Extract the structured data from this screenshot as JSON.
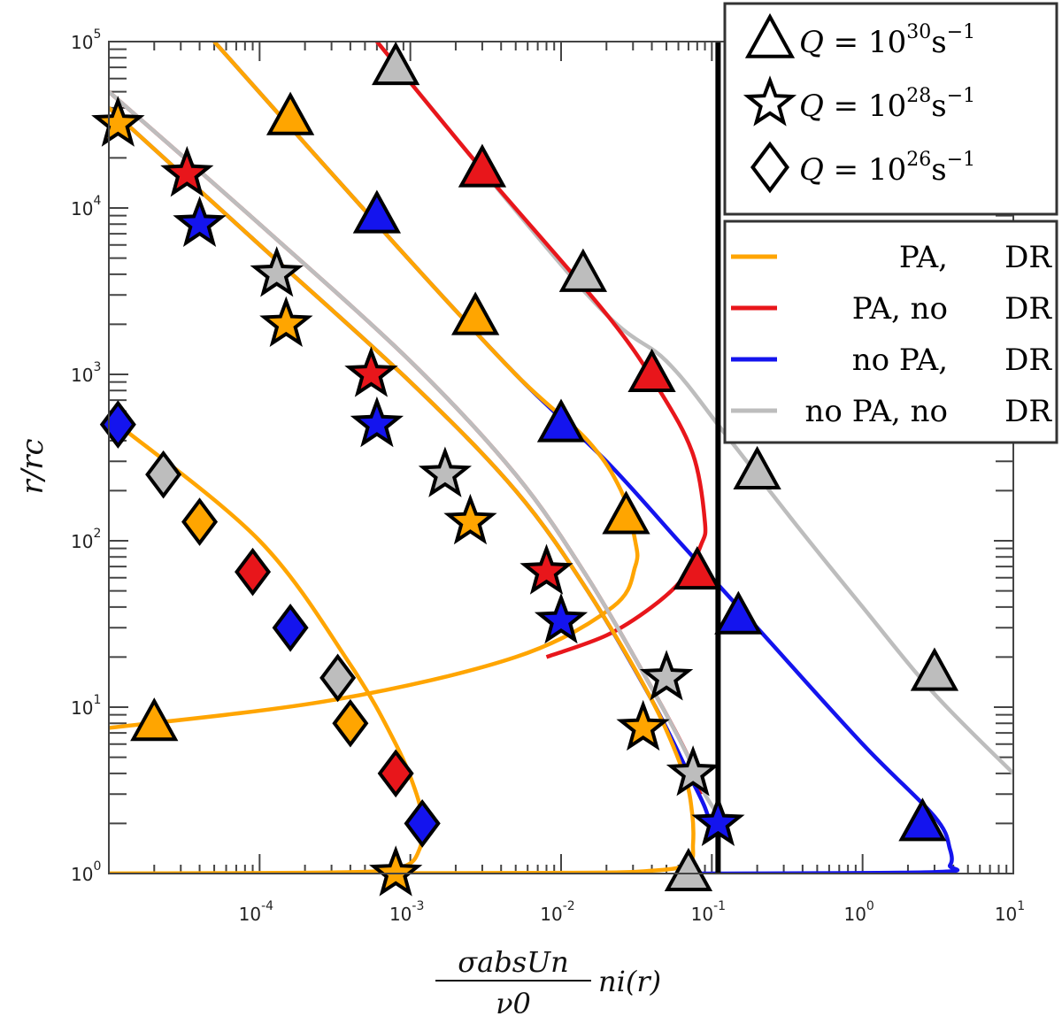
{
  "chart_data": {
    "type": "line",
    "xscale": "log",
    "yscale": "log",
    "xlim": [
      1e-05,
      10
    ],
    "ylim": [
      1,
      100000
    ],
    "xlabel": {
      "top": "σabsUn",
      "bottom": "ν0",
      "tail": "ni(r)"
    },
    "ylabel": "r/rc",
    "x_ticks": [
      {
        "mantissa": "10",
        "exp": "-4",
        "value": 0.0001
      },
      {
        "mantissa": "10",
        "exp": "-3",
        "value": 0.001
      },
      {
        "mantissa": "10",
        "exp": "-2",
        "value": 0.01
      },
      {
        "mantissa": "10",
        "exp": "-1",
        "value": 0.1
      },
      {
        "mantissa": "10",
        "exp": "0",
        "value": 1
      },
      {
        "mantissa": "10",
        "exp": "1",
        "value": 10
      }
    ],
    "y_ticks": [
      {
        "mantissa": "10",
        "exp": "0",
        "value": 1
      },
      {
        "mantissa": "10",
        "exp": "1",
        "value": 10
      },
      {
        "mantissa": "10",
        "exp": "2",
        "value": 100
      },
      {
        "mantissa": "10",
        "exp": "3",
        "value": 1000
      },
      {
        "mantissa": "10",
        "exp": "4",
        "value": 10000
      },
      {
        "mantissa": "10",
        "exp": "5",
        "value": 100000
      }
    ],
    "vline_x": 0.11,
    "colors": {
      "PA_DR": "#ffa500",
      "PA_noDR": "#e8161b",
      "noPA_DR": "#1414ee",
      "noPA_noDR": "#bdbdbd"
    },
    "marker_legend": [
      {
        "shape": "triangle",
        "prefix": "Q = 10",
        "exp": "30",
        "unit": "s",
        "unit_exp": "−1"
      },
      {
        "shape": "star",
        "prefix": "Q = 10",
        "exp": "28",
        "unit": "s",
        "unit_exp": "−1"
      },
      {
        "shape": "diamond",
        "prefix": "Q = 10",
        "exp": "26",
        "unit": "s",
        "unit_exp": "−1"
      }
    ],
    "line_legend": [
      {
        "key": "PA_DR",
        "left": "PA,",
        "right": "DR"
      },
      {
        "key": "PA_noDR",
        "left": "PA, no",
        "right": "DR"
      },
      {
        "key": "noPA_DR",
        "left": "no PA,",
        "right": "DR"
      },
      {
        "key": "noPA_noDR",
        "left": "no PA, no",
        "right": "DR"
      }
    ],
    "series": [
      {
        "name": "Q30 no PA, no DR",
        "color": "noPA_noDR",
        "marker": "triangle",
        "line": [
          [
            0.0006,
            100000
          ],
          [
            0.015,
            3000
          ],
          [
            0.05,
            1200
          ],
          [
            0.12,
            450
          ],
          [
            0.35,
            130
          ],
          [
            1.0,
            40
          ],
          [
            3,
            12
          ],
          [
            10,
            4
          ]
        ],
        "points": [
          [
            0.0008,
            70000
          ],
          [
            0.014,
            4000
          ],
          [
            0.2,
            260
          ],
          [
            3.0,
            16
          ],
          [
            0.07,
            1.0
          ]
        ]
      },
      {
        "name": "Q30 PA, no DR",
        "color": "PA_noDR",
        "marker": "triangle",
        "line": [
          [
            0.0006,
            100000
          ],
          [
            0.003,
            17000
          ],
          [
            0.02,
            2300
          ],
          [
            0.045,
            800
          ],
          [
            0.075,
            330
          ],
          [
            0.09,
            130
          ],
          [
            0.085,
            95
          ],
          [
            0.065,
            60
          ],
          [
            0.04,
            40
          ],
          [
            0.02,
            27
          ],
          [
            0.008,
            20
          ]
        ],
        "points": [
          [
            0.003,
            17000
          ],
          [
            0.04,
            1000
          ],
          [
            0.08,
            65
          ]
        ]
      },
      {
        "name": "Q30 no PA, DR",
        "color": "noPA_DR",
        "marker": "triangle",
        "line": [
          [
            5e-05,
            100000
          ],
          [
            0.0008,
            6000
          ],
          [
            0.005,
            1000
          ],
          [
            0.02,
            300
          ],
          [
            0.06,
            100
          ],
          [
            0.2,
            30
          ],
          [
            1.0,
            6
          ],
          [
            3.0,
            2.2
          ],
          [
            3.8,
            1.4
          ],
          [
            3.8,
            1.12
          ],
          [
            3,
            1.02
          ],
          [
            0.08,
            1.0
          ]
        ],
        "points": [
          [
            0.0006,
            9000
          ],
          [
            0.01,
            500
          ],
          [
            0.15,
            35
          ],
          [
            2.5,
            2
          ]
        ]
      },
      {
        "name": "Q30 PA, DR",
        "color": "PA_DR",
        "marker": "triangle",
        "line": [
          [
            5e-05,
            100000
          ],
          [
            0.0008,
            6000
          ],
          [
            0.005,
            1000
          ],
          [
            0.015,
            400
          ],
          [
            0.025,
            200
          ],
          [
            0.031,
            100
          ],
          [
            0.031,
            70
          ],
          [
            0.022,
            40
          ],
          [
            0.005,
            20
          ],
          [
            0.0003,
            11
          ],
          [
            1e-05,
            7.5
          ]
        ],
        "points": [
          [
            0.00016,
            35000
          ],
          [
            0.0027,
            2200
          ],
          [
            0.027,
            140
          ],
          [
            2e-05,
            8
          ]
        ]
      },
      {
        "name": "Q28 PA, no DR",
        "color": "PA_noDR",
        "marker": "star",
        "line": [
          [
            1e-05,
            50000
          ],
          [
            0.0001,
            8000
          ],
          [
            0.001,
            1200
          ],
          [
            0.005,
            250
          ],
          [
            0.015,
            60
          ],
          [
            0.04,
            13
          ],
          [
            0.07,
            5
          ],
          [
            0.085,
            3
          ]
        ],
        "points": [
          [
            3.3e-05,
            16000
          ],
          [
            0.00055,
            1000
          ],
          [
            0.008,
            65
          ]
        ]
      },
      {
        "name": "Q28 no PA, no DR",
        "color": "noPA_noDR",
        "marker": "star",
        "line": [
          [
            1e-05,
            50000
          ],
          [
            0.0001,
            8000
          ],
          [
            0.001,
            1200
          ],
          [
            0.005,
            250
          ],
          [
            0.015,
            60
          ],
          [
            0.04,
            13
          ],
          [
            0.07,
            5
          ],
          [
            0.09,
            3
          ],
          [
            0.12,
            2
          ]
        ],
        "points": [
          [
            0.00013,
            4000
          ],
          [
            0.0017,
            250
          ],
          [
            0.05,
            15
          ],
          [
            0.075,
            4
          ]
        ]
      },
      {
        "name": "Q28 no PA, DR",
        "color": "noPA_DR",
        "marker": "star",
        "line": [
          [
            1e-05,
            40000
          ],
          [
            0.0001,
            6000
          ],
          [
            0.001,
            900
          ],
          [
            0.005,
            200
          ],
          [
            0.015,
            50
          ],
          [
            0.04,
            11
          ],
          [
            0.07,
            4
          ],
          [
            0.09,
            2.5
          ],
          [
            0.1,
            1.8
          ]
        ],
        "points": [
          [
            4e-05,
            8000
          ],
          [
            0.0006,
            500
          ],
          [
            0.01,
            33
          ],
          [
            0.11,
            2
          ]
        ]
      },
      {
        "name": "Q28 PA, DR",
        "color": "PA_DR",
        "marker": "star",
        "line": [
          [
            1e-05,
            40000
          ],
          [
            0.0001,
            6000
          ],
          [
            0.001,
            900
          ],
          [
            0.005,
            200
          ],
          [
            0.015,
            50
          ],
          [
            0.04,
            11
          ],
          [
            0.065,
            4
          ],
          [
            0.074,
            2.3
          ],
          [
            0.075,
            1.5
          ],
          [
            0.07,
            1.15
          ],
          [
            0.04,
            1.04
          ],
          [
            0.008,
            1.01
          ],
          [
            1e-05,
            1.0
          ]
        ],
        "points": [
          [
            1.15e-05,
            32000
          ],
          [
            0.00015,
            2000
          ],
          [
            0.0025,
            130
          ],
          [
            0.035,
            7.5
          ],
          [
            0.0008,
            1.0
          ]
        ]
      },
      {
        "name": "Q26 PA, DR",
        "color": "PA_DR",
        "marker": "diamond",
        "line": [
          [
            1.15e-05,
            500
          ],
          [
            0.0001,
            100
          ],
          [
            0.0004,
            18
          ],
          [
            0.0008,
            6
          ],
          [
            0.0011,
            3
          ],
          [
            0.0012,
            2
          ],
          [
            0.00115,
            1.4
          ],
          [
            0.0009,
            1.1
          ],
          [
            0.0004,
            1.02
          ],
          [
            1e-05,
            1.0
          ]
        ],
        "points": [
          [
            4e-05,
            130
          ],
          [
            0.0004,
            8
          ],
          [
            0.0012,
            2
          ]
        ]
      },
      {
        "name": "Q26 no PA, DR",
        "color": "noPA_DR",
        "marker": "diamond",
        "line": [],
        "points": [
          [
            1.15e-05,
            500
          ],
          [
            0.00016,
            30
          ],
          [
            0.0012,
            2
          ]
        ]
      },
      {
        "name": "Q26 no PA, no DR",
        "color": "noPA_noDR",
        "marker": "diamond",
        "line": [],
        "points": [
          [
            2.3e-05,
            250
          ],
          [
            0.00033,
            15
          ]
        ]
      },
      {
        "name": "Q26 PA, no DR",
        "color": "PA_noDR",
        "marker": "diamond",
        "line": [],
        "points": [
          [
            9e-05,
            65
          ],
          [
            0.0008,
            4
          ]
        ]
      }
    ]
  }
}
